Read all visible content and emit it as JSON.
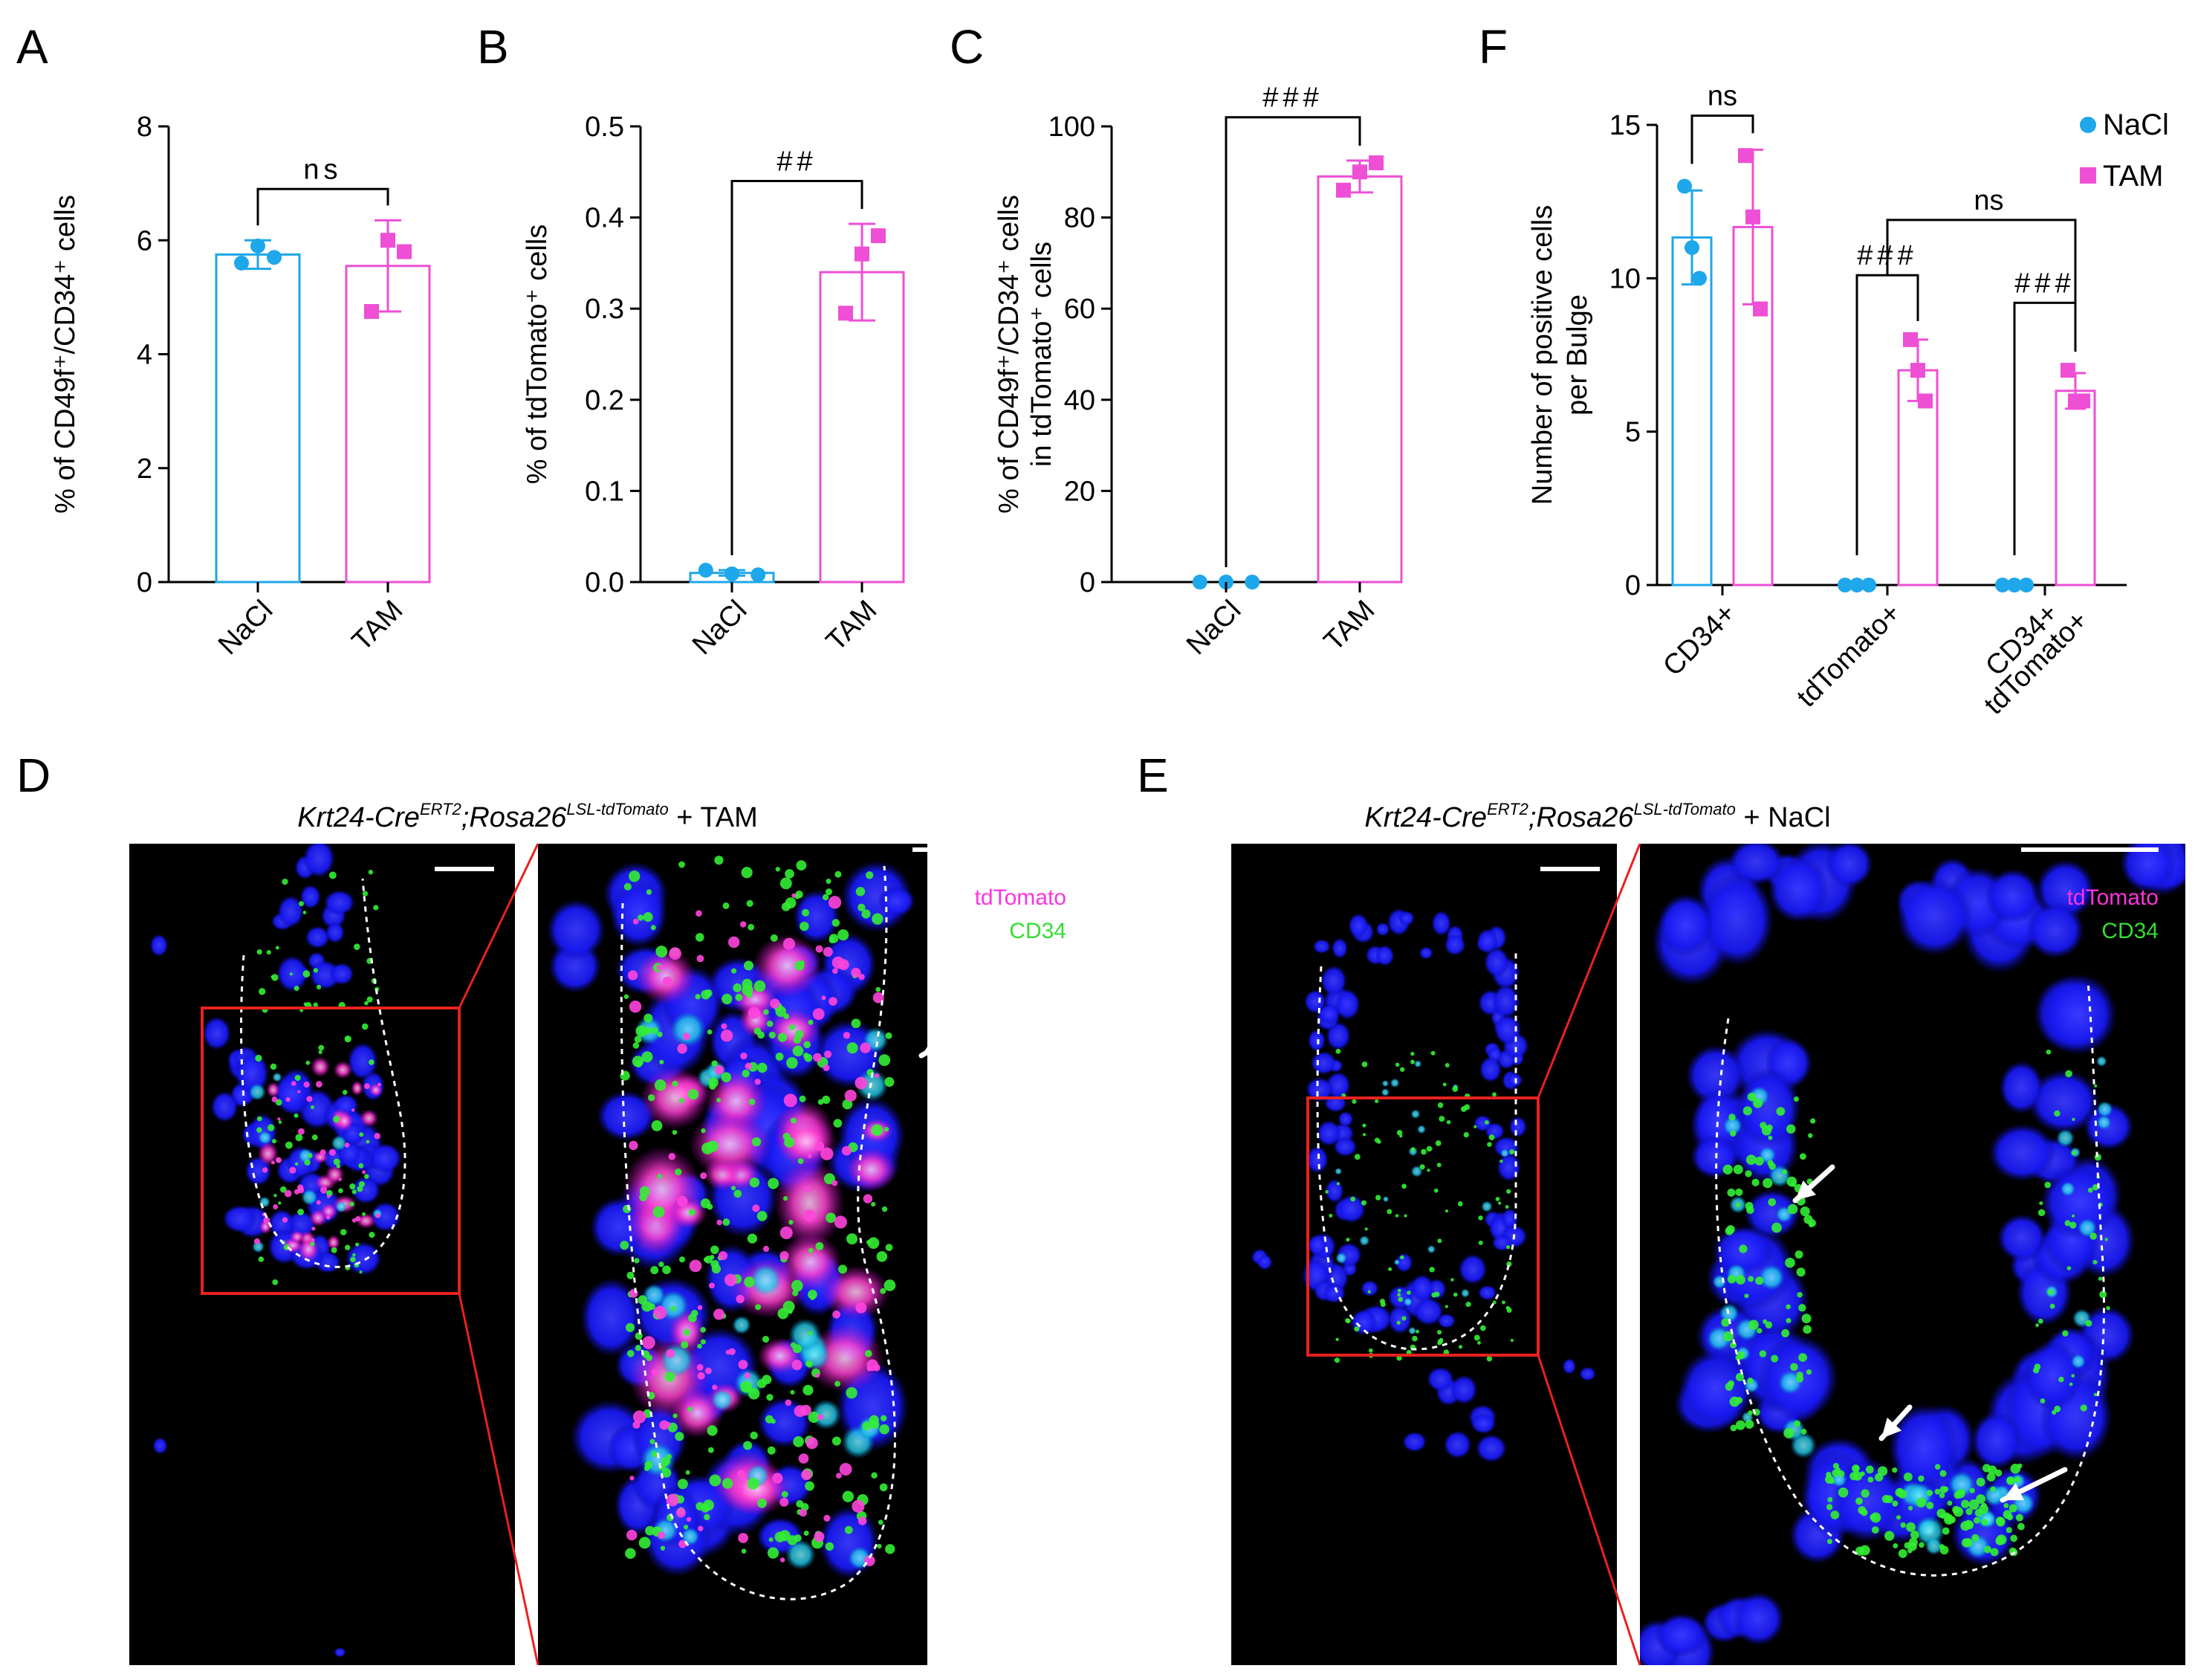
{
  "colors": {
    "nacl": "#1ea7ea",
    "tam": "#ee4fd5",
    "blue_nuclei": "#1a1aff",
    "cd34": "#2ee62e",
    "tdtomato": "#ff33cc",
    "red_box": "#e8221e"
  },
  "panels": {
    "A": {
      "letter": "A"
    },
    "B": {
      "letter": "B"
    },
    "C": {
      "letter": "C"
    },
    "F": {
      "letter": "F"
    },
    "D": {
      "letter": "D",
      "title_gene1": "Krt24-Cre",
      "title_sup1": "ERT2",
      "title_gene2": ";Rosa26",
      "title_sup2": "LSL-tdTomato",
      "title_suffix": " + TAM",
      "legend_tdtomato": "tdTomato",
      "legend_cd34": "CD34"
    },
    "E": {
      "letter": "E",
      "title_gene1": "Krt24-Cre",
      "title_sup1": "ERT2",
      "title_gene2": ";Rosa26",
      "title_sup2": "LSL-tdTomato",
      "title_suffix": " + NaCl",
      "legend_tdtomato": "tdTomato",
      "legend_cd34": "CD34"
    }
  },
  "chart_data": [
    {
      "id": "A",
      "type": "bar",
      "ylabel": "% of CD49f⁺/CD34⁺ cells",
      "ylim": [
        0,
        8
      ],
      "yticks": [
        0,
        2,
        4,
        6,
        8
      ],
      "categories": [
        "NaCl",
        "TAM"
      ],
      "series": [
        {
          "name": "NaCl",
          "mean": 5.75,
          "error": 0.25,
          "points": [
            5.6,
            5.9,
            5.7
          ]
        },
        {
          "name": "TAM",
          "mean": 5.55,
          "error": 0.8,
          "points": [
            4.75,
            6.0,
            5.8
          ]
        }
      ],
      "annotations": [
        {
          "text": "ns",
          "from": 0,
          "to": 1,
          "y": 6.9
        }
      ]
    },
    {
      "id": "B",
      "type": "bar",
      "ylabel": "% of tdTomato⁺ cells",
      "ylim": [
        0,
        0.5
      ],
      "yticks": [
        "0.0",
        "0.1",
        "0.2",
        "0.3",
        "0.4",
        "0.5"
      ],
      "categories": [
        "NaCl",
        "TAM"
      ],
      "series": [
        {
          "name": "NaCl",
          "mean": 0.01,
          "error": 0.003,
          "points": [
            0.013,
            0.009,
            0.008
          ]
        },
        {
          "name": "TAM",
          "mean": 0.34,
          "error": 0.053,
          "points": [
            0.295,
            0.36,
            0.38
          ]
        }
      ],
      "annotations": [
        {
          "text": "##",
          "from": 0,
          "to": 1,
          "y": 0.44
        }
      ]
    },
    {
      "id": "C",
      "type": "bar",
      "ylabel_line1": "% of CD49f⁺/CD34⁺ cells",
      "ylabel_line2": "in tdTomato⁺ cells",
      "ylim": [
        0,
        100
      ],
      "yticks": [
        0,
        20,
        40,
        60,
        80,
        100
      ],
      "categories": [
        "NaCl",
        "TAM"
      ],
      "series": [
        {
          "name": "NaCl",
          "mean": 0,
          "error": 0,
          "points": [
            0,
            0,
            0
          ]
        },
        {
          "name": "TAM",
          "mean": 89,
          "error": 3.5,
          "points": [
            86,
            90,
            92
          ]
        }
      ],
      "annotations": [
        {
          "text": "###",
          "from": 0,
          "to": 1,
          "y": 102
        }
      ]
    },
    {
      "id": "F",
      "type": "bar",
      "ylabel_line1": "Number of positive cells",
      "ylabel_line2": "per Bulge",
      "ylim": [
        0,
        15
      ],
      "yticks": [
        0,
        5,
        10,
        15
      ],
      "categories": [
        "CD34+",
        "tdTomato+",
        "CD34+ tdTomato+"
      ],
      "category_lines": [
        [
          "CD34+"
        ],
        [
          "tdTomato+"
        ],
        [
          "CD34+",
          "tdTomato+"
        ]
      ],
      "legend": [
        "NaCl",
        "TAM"
      ],
      "series": [
        {
          "name": "NaCl",
          "values": [
            11.33,
            0,
            0
          ],
          "errors": [
            1.53,
            0,
            0
          ],
          "points": [
            [
              13,
              11,
              10
            ],
            [
              0,
              0,
              0
            ],
            [
              0,
              0,
              0
            ]
          ]
        },
        {
          "name": "TAM",
          "values": [
            11.67,
            7.0,
            6.33
          ],
          "errors": [
            2.52,
            1.0,
            0.58
          ],
          "points": [
            [
              14,
              12,
              9
            ],
            [
              8,
              7,
              6
            ],
            [
              7,
              6,
              6
            ]
          ]
        }
      ],
      "annotations": [
        {
          "text": "ns",
          "from": [
            0,
            0
          ],
          "to": [
            0,
            1
          ],
          "y": 15.3
        },
        {
          "text": "###",
          "from": [
            1,
            0
          ],
          "to": [
            1,
            1
          ],
          "y": 10.1
        },
        {
          "text": "###",
          "from": [
            2,
            0
          ],
          "to": [
            2,
            1
          ],
          "y": 9.2
        },
        {
          "text": "ns",
          "from": "###-1",
          "to": "###-2",
          "y": 11.9
        }
      ]
    }
  ]
}
